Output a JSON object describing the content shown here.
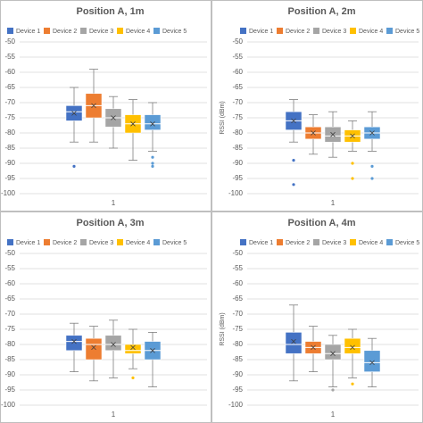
{
  "chart_data": [
    {
      "type": "box",
      "title": "Position A, 1m",
      "categories": [
        "1"
      ],
      "ylim": [
        -100,
        -50
      ],
      "yticks": [
        -50,
        -55,
        -60,
        -65,
        -70,
        -75,
        -80,
        -85,
        -90,
        -95,
        -100
      ],
      "grid": true,
      "legend": "top",
      "series": [
        {
          "name": "Device 1",
          "color": "#4472c4",
          "min": -83,
          "q1": -76,
          "median": -73,
          "q3": -71,
          "max": -65,
          "mean": -73.5,
          "outliers": [
            -91
          ]
        },
        {
          "name": "Device 2",
          "color": "#ed7d31",
          "min": -83,
          "q1": -75,
          "median": -71,
          "q3": -67,
          "max": -59,
          "mean": -71,
          "outliers": []
        },
        {
          "name": "Device 3",
          "color": "#a5a5a5",
          "min": -85,
          "q1": -78,
          "median": -75,
          "q3": -72,
          "max": -68,
          "mean": -75,
          "outliers": []
        },
        {
          "name": "Device 4",
          "color": "#ffc000",
          "min": -89,
          "q1": -80,
          "median": -77,
          "q3": -74,
          "max": -69,
          "mean": -77,
          "outliers": []
        },
        {
          "name": "Device 5",
          "color": "#5b9bd5",
          "min": -86,
          "q1": -79,
          "median": -77,
          "q3": -74,
          "max": -70,
          "mean": -77,
          "outliers": [
            -88,
            -90,
            -91
          ]
        }
      ]
    },
    {
      "type": "box",
      "title": "Position A, 2m",
      "ylabel": "RSSI (dBm)",
      "categories": [
        "1"
      ],
      "ylim": [
        -100,
        -50
      ],
      "yticks": [
        -50,
        -55,
        -60,
        -65,
        -70,
        -75,
        -80,
        -85,
        -90,
        -95,
        -100
      ],
      "grid": true,
      "legend": "top",
      "series": [
        {
          "name": "Device 1",
          "color": "#4472c4",
          "min": -83,
          "q1": -79,
          "median": -76,
          "q3": -73,
          "max": -69,
          "mean": -76,
          "outliers": [
            -89,
            -97
          ]
        },
        {
          "name": "Device 2",
          "color": "#ed7d31",
          "min": -87,
          "q1": -82,
          "median": -80,
          "q3": -78,
          "max": -74,
          "mean": -80,
          "outliers": []
        },
        {
          "name": "Device 3",
          "color": "#a5a5a5",
          "min": -88,
          "q1": -83,
          "median": -81,
          "q3": -78,
          "max": -73,
          "mean": -80.5,
          "outliers": []
        },
        {
          "name": "Device 4",
          "color": "#ffc000",
          "min": -86,
          "q1": -83,
          "median": -81,
          "q3": -79,
          "max": -76,
          "mean": -81,
          "outliers": [
            -90,
            -95
          ]
        },
        {
          "name": "Device 5",
          "color": "#5b9bd5",
          "min": -86,
          "q1": -82,
          "median": -80,
          "q3": -78,
          "max": -73,
          "mean": -80,
          "outliers": [
            -91,
            -95
          ]
        }
      ]
    },
    {
      "type": "box",
      "title": "Position A, 3m",
      "categories": [
        "1"
      ],
      "ylim": [
        -100,
        -50
      ],
      "yticks": [
        -50,
        -55,
        -60,
        -65,
        -70,
        -75,
        -80,
        -85,
        -90,
        -95,
        -100
      ],
      "grid": true,
      "legend": "top",
      "series": [
        {
          "name": "Device 1",
          "color": "#4472c4",
          "min": -89,
          "q1": -82,
          "median": -79,
          "q3": -77,
          "max": -73,
          "mean": -79,
          "outliers": []
        },
        {
          "name": "Device 2",
          "color": "#ed7d31",
          "min": -92,
          "q1": -85,
          "median": -80,
          "q3": -78,
          "max": -74,
          "mean": -81,
          "outliers": []
        },
        {
          "name": "Device 3",
          "color": "#a5a5a5",
          "min": -91,
          "q1": -82,
          "median": -80,
          "q3": -77,
          "max": -72,
          "mean": -80,
          "outliers": []
        },
        {
          "name": "Device 4",
          "color": "#ffc000",
          "min": -88,
          "q1": -83,
          "median": -82,
          "q3": -80,
          "max": -75,
          "mean": -81,
          "outliers": [
            -91
          ]
        },
        {
          "name": "Device 5",
          "color": "#5b9bd5",
          "min": -94,
          "q1": -85,
          "median": -82,
          "q3": -79,
          "max": -76,
          "mean": -82,
          "outliers": []
        }
      ]
    },
    {
      "type": "box",
      "title": "Position A, 4m",
      "ylabel": "RSSI (dBm)",
      "categories": [
        "1"
      ],
      "ylim": [
        -100,
        -50
      ],
      "yticks": [
        -50,
        -55,
        -60,
        -65,
        -70,
        -75,
        -80,
        -85,
        -90,
        -95,
        -100
      ],
      "grid": true,
      "legend": "top",
      "series": [
        {
          "name": "Device 1",
          "color": "#4472c4",
          "min": -92,
          "q1": -83,
          "median": -80,
          "q3": -76,
          "max": -67,
          "mean": -79,
          "outliers": []
        },
        {
          "name": "Device 2",
          "color": "#ed7d31",
          "min": -89,
          "q1": -83,
          "median": -81,
          "q3": -79,
          "max": -74,
          "mean": -81,
          "outliers": []
        },
        {
          "name": "Device 3",
          "color": "#a5a5a5",
          "min": -94,
          "q1": -85,
          "median": -83,
          "q3": -80,
          "max": -77,
          "mean": -83,
          "outliers": [
            -95
          ]
        },
        {
          "name": "Device 4",
          "color": "#ffc000",
          "min": -91,
          "q1": -83,
          "median": -81,
          "q3": -78,
          "max": -75,
          "mean": -81,
          "outliers": [
            -93
          ]
        },
        {
          "name": "Device 5",
          "color": "#5b9bd5",
          "min": -94,
          "q1": -89,
          "median": -86,
          "q3": -82,
          "max": -78,
          "mean": -86,
          "outliers": []
        }
      ]
    }
  ]
}
